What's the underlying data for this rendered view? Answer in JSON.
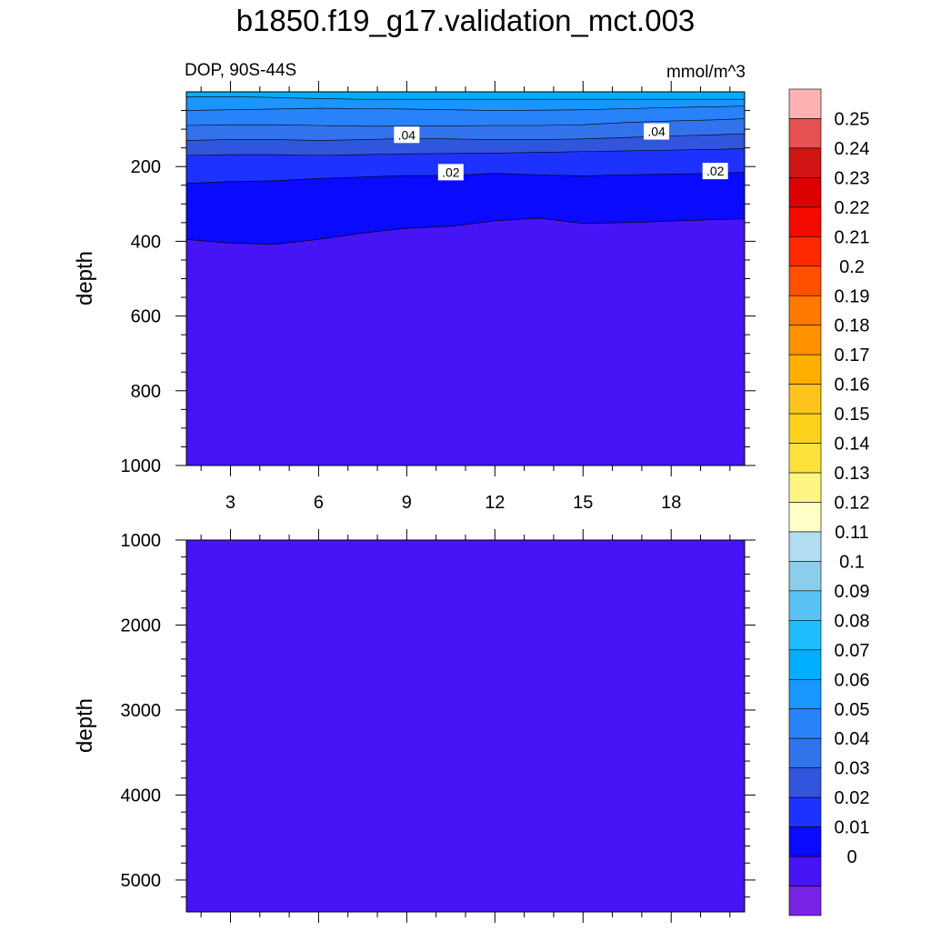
{
  "title": "b1850.f19_g17.validation_mct.003",
  "chart_data": [
    {
      "type": "contour",
      "panel": "upper",
      "subtitle_left": "DOP, 90S-44S",
      "subtitle_right": "mmol/m^3",
      "ylabel": "depth",
      "x_ticks": [
        "3",
        "6",
        "9",
        "12",
        "15",
        "18"
      ],
      "xlim": [
        1.5,
        20.5
      ],
      "ylim": [
        0,
        1000
      ],
      "y_ticks": [
        "200",
        "400",
        "600",
        "800",
        "1000"
      ],
      "y_reversed": true,
      "x": [
        1.5,
        3,
        4.5,
        6,
        7.5,
        9,
        10.5,
        12,
        13.5,
        15,
        16.5,
        18,
        19.5,
        20.5
      ],
      "contour_lines": [
        {
          "level": 0.06,
          "depth": [
            13,
            13,
            15,
            18,
            20,
            20,
            20,
            20,
            20,
            20,
            20,
            20,
            20,
            20
          ]
        },
        {
          "level": 0.05,
          "depth": [
            50,
            48,
            46,
            44,
            45,
            46,
            48,
            50,
            49,
            48,
            45,
            42,
            40,
            38
          ]
        },
        {
          "level": 0.04,
          "depth": [
            90,
            88,
            88,
            90,
            92,
            92,
            91,
            90,
            90,
            88,
            82,
            78,
            75,
            72
          ]
        },
        {
          "level": 0.03,
          "depth": [
            130,
            128,
            128,
            130,
            128,
            125,
            126,
            128,
            128,
            126,
            122,
            118,
            115,
            112
          ]
        },
        {
          "level": 0.02,
          "depth": [
            170,
            168,
            168,
            170,
            168,
            166,
            165,
            164,
            162,
            160,
            158,
            156,
            154,
            152
          ]
        },
        {
          "level": 0.01,
          "depth": [
            245,
            240,
            238,
            232,
            228,
            224,
            224,
            218,
            222,
            225,
            222,
            220,
            218,
            215
          ]
        },
        {
          "level": 0.0,
          "depth": [
            395,
            405,
            408,
            395,
            378,
            365,
            360,
            345,
            338,
            352,
            350,
            346,
            342,
            340
          ]
        }
      ],
      "line_labels": [
        {
          "text": ".04",
          "x": 9,
          "depth": 115
        },
        {
          "text": ".04",
          "x": 17.5,
          "depth": 106
        },
        {
          "text": ".02",
          "x": 10.5,
          "depth": 215
        },
        {
          "text": ".02",
          "x": 19.5,
          "depth": 212
        }
      ]
    },
    {
      "type": "contour",
      "panel": "lower",
      "ylabel": "depth",
      "ylim": [
        1000,
        5375
      ],
      "y_ticks": [
        "1000",
        "2000",
        "3000",
        "4000",
        "5000"
      ],
      "y_reversed": true,
      "fill_level": 0.0
    }
  ],
  "colorbar": {
    "labels": [
      "0.25",
      "0.24",
      "0.23",
      "0.22",
      "0.21",
      "0.2",
      "0.19",
      "0.18",
      "0.17",
      "0.16",
      "0.15",
      "0.14",
      "0.13",
      "0.12",
      "0.11",
      "0.1",
      "0.09",
      "0.08",
      "0.07",
      "0.06",
      "0.05",
      "0.04",
      "0.03",
      "0.02",
      "0.01",
      "0"
    ],
    "colors_top_to_bottom": [
      "#ffb2b2",
      "#e55050",
      "#d11414",
      "#dc0000",
      "#f50a00",
      "#ff2800",
      "#ff5000",
      "#ff7800",
      "#ff9100",
      "#ffaf00",
      "#ffc31e",
      "#ffd21e",
      "#ffe13c",
      "#fff582",
      "#ffffc8",
      "#b4dcf0",
      "#8ccdeb",
      "#5ac3f5",
      "#1ebeff",
      "#00afff",
      "#1996ff",
      "#2882fa",
      "#3273eb",
      "#3255de",
      "#1e32ff",
      "#0a0aff",
      "#4614f5",
      "#7823e6"
    ]
  }
}
